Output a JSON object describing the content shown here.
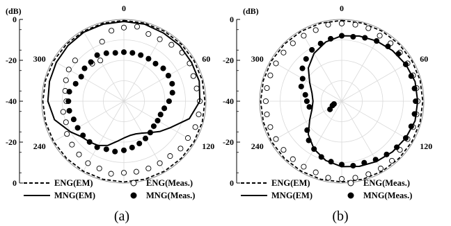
{
  "figure": {
    "caption_a": "(a)",
    "caption_b": "(b)"
  },
  "chart_data": [
    {
      "type": "polar",
      "caption": "(a)",
      "radial_unit": "(dB)",
      "radial_range": [
        -40,
        0
      ],
      "radial_ticks": [
        "0",
        "-20",
        "-40",
        "-20",
        "0"
      ],
      "angle_labels": [
        "0",
        "60",
        "120",
        "240",
        "300"
      ],
      "legend": [
        "ENG(EM)",
        "ENG(Meas.)",
        "MNG(EM)",
        "MNG(Meas.)"
      ],
      "series": [
        {
          "name": "ENG(EM)",
          "style": "dashed-line",
          "angles": [
            0,
            15,
            30,
            45,
            60,
            75,
            90,
            105,
            120,
            135,
            150,
            165,
            180,
            195,
            210,
            225,
            240,
            255,
            270,
            285,
            300,
            315,
            330,
            345
          ],
          "values": [
            -0.5,
            -0.5,
            -0.5,
            -0.5,
            -0.5,
            -0.5,
            -0.5,
            -0.5,
            -0.5,
            -0.5,
            -0.5,
            -0.5,
            -0.5,
            -0.5,
            -0.5,
            -0.5,
            -0.5,
            -0.5,
            -0.5,
            -0.5,
            -0.5,
            -0.5,
            -0.5,
            -0.5
          ]
        },
        {
          "name": "ENG(Meas.)",
          "style": "open-circle",
          "angles": [
            0,
            10,
            20,
            30,
            40,
            50,
            60,
            70,
            80,
            90,
            100,
            110,
            120,
            130,
            140,
            150,
            160,
            170,
            180,
            190,
            200,
            210,
            220,
            230,
            240,
            250,
            260,
            270,
            280,
            290,
            300,
            310,
            320,
            330,
            340,
            350
          ],
          "values": [
            -4,
            -3,
            -5,
            -5,
            -4,
            -3,
            -3,
            -4,
            -4,
            -3,
            -3,
            -3,
            -4,
            -4,
            -5,
            -5,
            -5,
            -5,
            -5,
            -4,
            -5,
            -5,
            -6,
            -7,
            -8,
            -10,
            -10,
            -12,
            -11,
            -10,
            -9,
            -9,
            -16,
            -17,
            -9,
            -5
          ]
        },
        {
          "name": "MNG(EM)",
          "style": "solid-line",
          "angles": [
            0,
            15,
            30,
            45,
            60,
            75,
            90,
            105,
            110,
            120,
            130,
            140,
            150,
            160,
            170,
            180,
            190,
            200,
            210,
            220,
            230,
            240,
            255,
            270,
            285,
            300,
            315,
            330,
            345
          ],
          "values": [
            -1,
            -1,
            -1.5,
            -1.5,
            -2,
            -2,
            -3,
            -7,
            -10,
            -14,
            -17,
            -20,
            -22,
            -23,
            -23,
            -22,
            -20,
            -17,
            -15,
            -14,
            -13,
            -10,
            -5,
            -3,
            -2.5,
            -2,
            -1.5,
            -1,
            -1
          ]
        },
        {
          "name": "MNG(Meas.)",
          "style": "filled-circle",
          "angles": [
            0,
            10,
            20,
            30,
            40,
            50,
            60,
            70,
            80,
            90,
            100,
            110,
            120,
            130,
            140,
            150,
            160,
            170,
            180,
            190,
            200,
            210,
            220,
            230,
            240,
            250,
            260,
            270,
            280,
            290,
            300,
            310,
            320,
            330,
            340,
            350
          ],
          "values": [
            -16,
            -16,
            -16,
            -16,
            -16,
            -15,
            -15,
            -15,
            -16,
            -18,
            -20,
            -21,
            -21,
            -21,
            -20,
            -19,
            -18,
            -17,
            -16,
            -15,
            -15,
            -14,
            -14,
            -14,
            -14,
            -14,
            -13,
            -13,
            -13,
            -15,
            -16,
            -15,
            -15,
            -14,
            -15,
            -16
          ]
        }
      ]
    },
    {
      "type": "polar",
      "caption": "(b)",
      "radial_unit": "(dB)",
      "radial_range": [
        -40,
        0
      ],
      "radial_ticks": [
        "0",
        "-20",
        "-40",
        "-20",
        "0"
      ],
      "angle_labels": [
        "0",
        "60",
        "120",
        "240",
        "300"
      ],
      "legend": [
        "ENG(EM)",
        "ENG(Meas.)",
        "MNG(EM)",
        "MNG(Meas.)"
      ],
      "series": [
        {
          "name": "ENG(EM)",
          "style": "dashed-line",
          "angles": [
            0,
            15,
            30,
            45,
            60,
            75,
            90,
            105,
            120,
            135,
            150,
            165,
            180,
            195,
            210,
            225,
            240,
            255,
            270,
            285,
            300,
            315,
            330,
            345
          ],
          "values": [
            -0.5,
            -0.5,
            -0.5,
            -0.5,
            -0.5,
            -0.5,
            -0.5,
            -0.5,
            -0.5,
            -0.5,
            -0.5,
            -0.5,
            -0.5,
            -0.5,
            -0.5,
            -0.5,
            -0.5,
            -0.5,
            -0.5,
            -0.5,
            -0.5,
            -0.5,
            -0.5,
            -0.5
          ]
        },
        {
          "name": "ENG(Meas.)",
          "style": "open-circle",
          "angles": [
            0,
            10,
            20,
            30,
            40,
            50,
            60,
            70,
            80,
            90,
            100,
            110,
            120,
            130,
            140,
            150,
            160,
            170,
            180,
            190,
            200,
            210,
            220,
            230,
            240,
            250,
            260,
            270,
            280,
            290,
            300,
            310,
            320,
            330,
            340,
            350
          ],
          "values": [
            -2,
            -2,
            -2,
            -3,
            -3,
            -3,
            -3,
            -3,
            -3,
            -3,
            -3,
            -3,
            -3,
            -3,
            -2,
            -2,
            -2,
            -2,
            -2,
            -2,
            -3,
            -3,
            -3,
            -3,
            -3,
            -3,
            -3,
            -3,
            -3,
            -3,
            -3,
            -3,
            -3,
            -3,
            -3,
            -2
          ]
        },
        {
          "name": "MNG(EM)",
          "style": "solid-line",
          "angles": [
            0,
            15,
            30,
            45,
            60,
            75,
            90,
            105,
            120,
            135,
            150,
            165,
            180,
            195,
            210,
            225,
            240,
            255,
            270,
            285,
            300,
            315,
            330,
            345
          ],
          "values": [
            -8,
            -7,
            -6,
            -5,
            -4,
            -3,
            -3,
            -3,
            -4,
            -5,
            -6,
            -7,
            -8,
            -10,
            -13,
            -17,
            -22,
            -25,
            -26,
            -25,
            -22,
            -17,
            -13,
            -10
          ]
        },
        {
          "name": "MNG(Meas.)",
          "style": "filled-circle",
          "angles": [
            0,
            10,
            20,
            30,
            40,
            50,
            60,
            70,
            80,
            90,
            100,
            110,
            120,
            130,
            140,
            150,
            160,
            170,
            180,
            190,
            200,
            210,
            220,
            230,
            235,
            245,
            250,
            260,
            270,
            280,
            290,
            300,
            310,
            320,
            330,
            340,
            350
          ],
          "values": [
            -8,
            -8,
            -7,
            -6,
            -5,
            -4,
            -4,
            -4,
            -4,
            -4,
            -4,
            -4,
            -4,
            -5,
            -6,
            -7,
            -8,
            -8,
            -9,
            -10,
            -11,
            -13,
            -15,
            -18,
            -33,
            -35,
            -36,
            -24,
            -23,
            -22,
            -19,
            -18,
            -15,
            -13,
            -11,
            -10,
            -9
          ]
        }
      ]
    }
  ]
}
